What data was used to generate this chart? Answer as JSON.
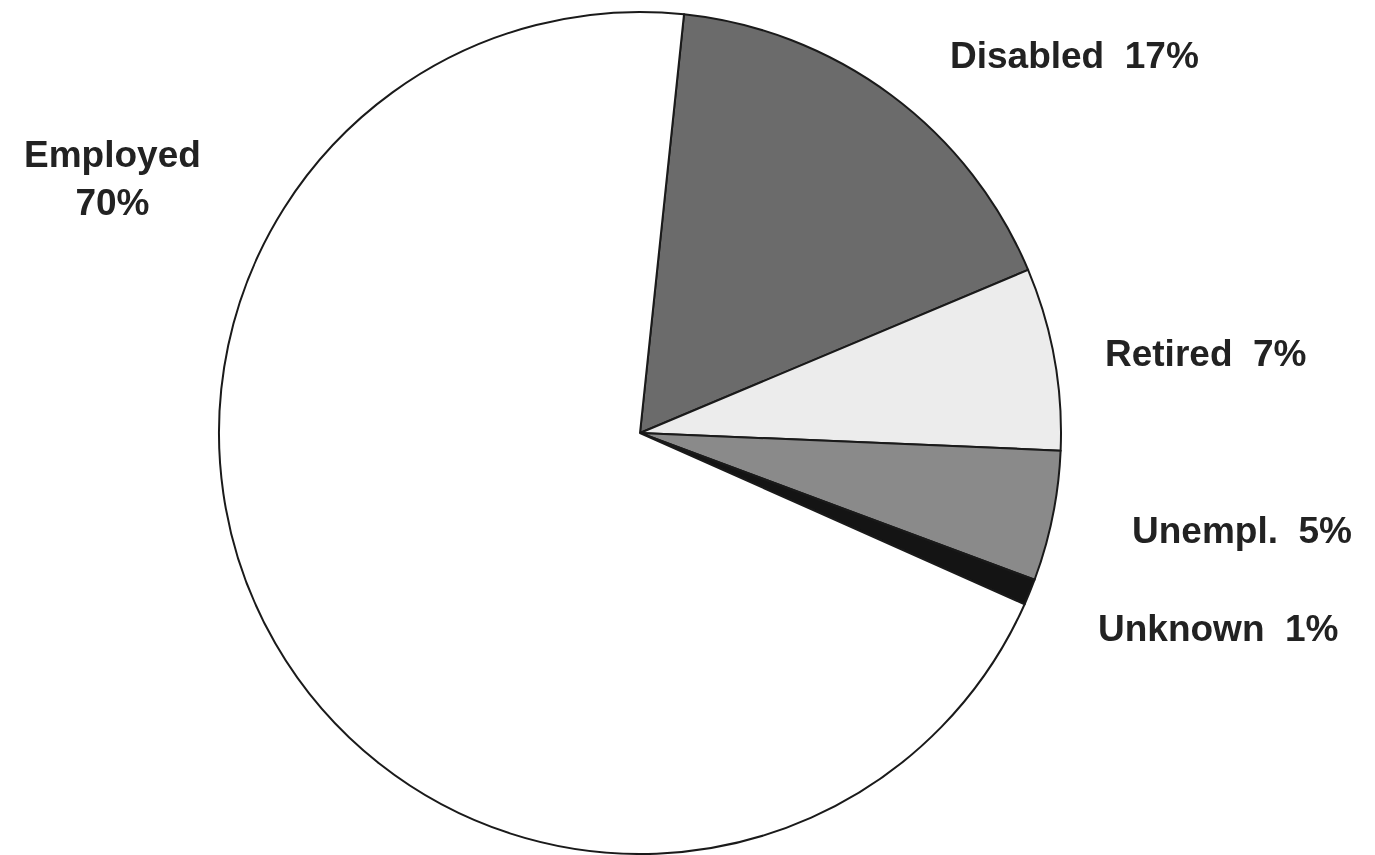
{
  "chart_data": {
    "type": "pie",
    "categories": [
      "Disabled",
      "Retired",
      "Unempl.",
      "Unknown",
      "Employed"
    ],
    "values": [
      17,
      7,
      5,
      1,
      70
    ],
    "value_labels": [
      "17%",
      "7%",
      "5%",
      "1%",
      "70%"
    ],
    "colors": [
      "#6b6b6b",
      "#ececec",
      "#8a8a8a",
      "#141414",
      "#ffffff"
    ],
    "legend": false
  }
}
